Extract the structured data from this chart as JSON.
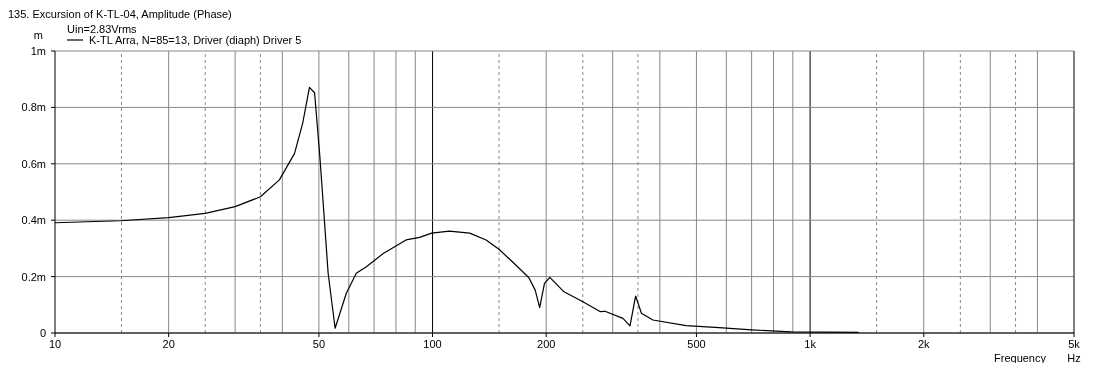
{
  "chart_data": {
    "type": "line",
    "title": "135. Excursion of K-TL-04, Amplitude (Phase)",
    "subtitle": "Uin=2.83Vrms",
    "xlabel": "Frequency",
    "ylabel": "m",
    "annotations": [
      "Hz"
    ],
    "log": "x",
    "grid": true,
    "legend": "top left",
    "marker": "none",
    "line_style": "solid",
    "xlim": [
      10,
      5000
    ],
    "xticks": [
      10,
      20,
      50,
      100,
      200,
      500,
      {
        "value": 1000,
        "label": "1k"
      },
      {
        "value": 2000,
        "label": "2k"
      },
      {
        "value": 5000,
        "label": "5k"
      }
    ],
    "ylim": [
      0,
      1
    ],
    "yticks": [
      0,
      {
        "value": 0.2,
        "label": "0.2m"
      },
      {
        "value": 0.4,
        "label": "0.4m"
      },
      {
        "value": 0.6,
        "label": "0.6m"
      },
      {
        "value": 0.8,
        "label": "0.8m"
      },
      {
        "value": 1,
        "label": "1m"
      }
    ],
    "series": [
      {
        "name": "K-TL Arra, N=85=13, Driver (diaph) Driver 5",
        "color": "#000000",
        "x": [
          10,
          14.9,
          20,
          25,
          30,
          35,
          39.3,
          43.1,
          45.3,
          47.2,
          48.7,
          50.3,
          52.9,
          55.2,
          59.1,
          62.8,
          66.8,
          74.2,
          85.1,
          92.4,
          99.5,
          110.8,
          125.4,
          138.6,
          149.9,
          163.8,
          180,
          187,
          192.2,
          197.9,
          204.5,
          222.9,
          250.2,
          277.6,
          286.2,
          319.4,
          333.4,
          345,
          357.5,
          383.3,
          469.5,
          574,
          700,
          892,
          1344
        ],
        "values": [
          0.391,
          0.398,
          0.409,
          0.424,
          0.448,
          0.483,
          0.543,
          0.637,
          0.744,
          0.871,
          0.852,
          0.625,
          0.212,
          0.017,
          0.141,
          0.212,
          0.235,
          0.283,
          0.33,
          0.339,
          0.354,
          0.361,
          0.354,
          0.33,
          0.297,
          0.249,
          0.196,
          0.152,
          0.09,
          0.176,
          0.197,
          0.146,
          0.111,
          0.076,
          0.077,
          0.052,
          0.025,
          0.131,
          0.07,
          0.046,
          0.026,
          0.019,
          0.011,
          0.004,
          0.002
        ]
      }
    ]
  }
}
